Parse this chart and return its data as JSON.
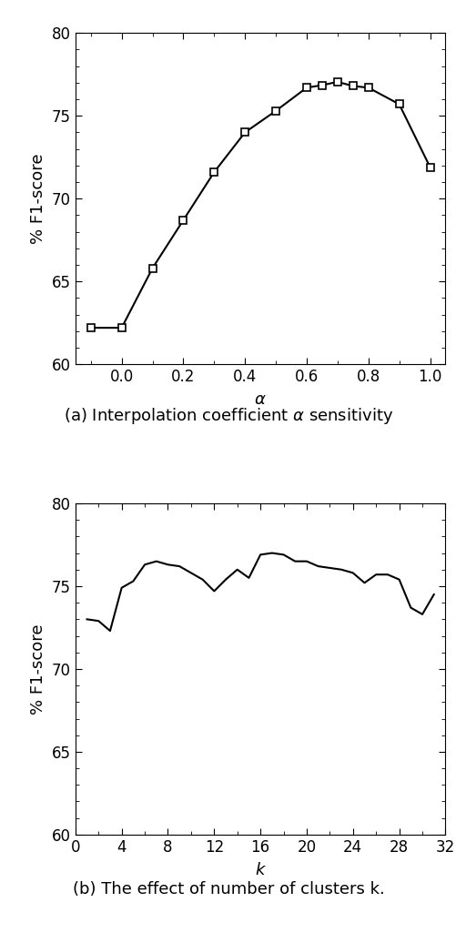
{
  "alpha_x": [
    -0.1,
    0.0,
    0.1,
    0.2,
    0.3,
    0.4,
    0.5,
    0.6,
    0.65,
    0.7,
    0.75,
    0.8,
    0.9,
    1.0
  ],
  "alpha_y": [
    62.2,
    62.2,
    65.8,
    68.7,
    71.6,
    74.0,
    75.3,
    76.7,
    76.85,
    77.05,
    76.8,
    76.7,
    75.7,
    71.9
  ],
  "alpha_xlim": [
    -0.15,
    1.05
  ],
  "alpha_ylim": [
    60,
    80
  ],
  "alpha_xticks": [
    0.0,
    0.2,
    0.4,
    0.6,
    0.8,
    1.0
  ],
  "alpha_yticks": [
    60,
    65,
    70,
    75,
    80
  ],
  "alpha_xlabel": "$\\alpha$",
  "alpha_ylabel": "% F1-score",
  "alpha_caption": "(a) Interpolation coefficient $\\alpha$ sensitivity",
  "k_x": [
    1,
    2,
    3,
    4,
    5,
    6,
    7,
    8,
    9,
    10,
    11,
    12,
    13,
    14,
    15,
    16,
    17,
    18,
    19,
    20,
    21,
    22,
    23,
    24,
    25,
    26,
    27,
    28,
    29,
    30,
    31
  ],
  "k_y": [
    73.0,
    72.9,
    72.3,
    74.9,
    75.3,
    76.3,
    76.5,
    76.3,
    76.2,
    75.8,
    75.4,
    74.7,
    75.4,
    76.0,
    75.5,
    76.9,
    77.0,
    76.9,
    76.5,
    76.5,
    76.2,
    76.1,
    76.0,
    75.8,
    75.2,
    75.7,
    75.7,
    75.4,
    73.7,
    73.3,
    74.5
  ],
  "k_xlim": [
    0,
    32
  ],
  "k_ylim": [
    60,
    80
  ],
  "k_xticks": [
    0,
    4,
    8,
    12,
    16,
    20,
    24,
    28,
    32
  ],
  "k_yticks": [
    60,
    65,
    70,
    75,
    80
  ],
  "k_xlabel": "$k$",
  "k_ylabel": "% F1-score",
  "k_caption": "(b) The effect of number of clusters k.",
  "line_color": "#000000",
  "marker": "s",
  "markersize": 5.5,
  "linewidth": 1.5,
  "background_color": "#ffffff",
  "caption_fontsize": 13,
  "label_fontsize": 13,
  "tick_fontsize": 12
}
